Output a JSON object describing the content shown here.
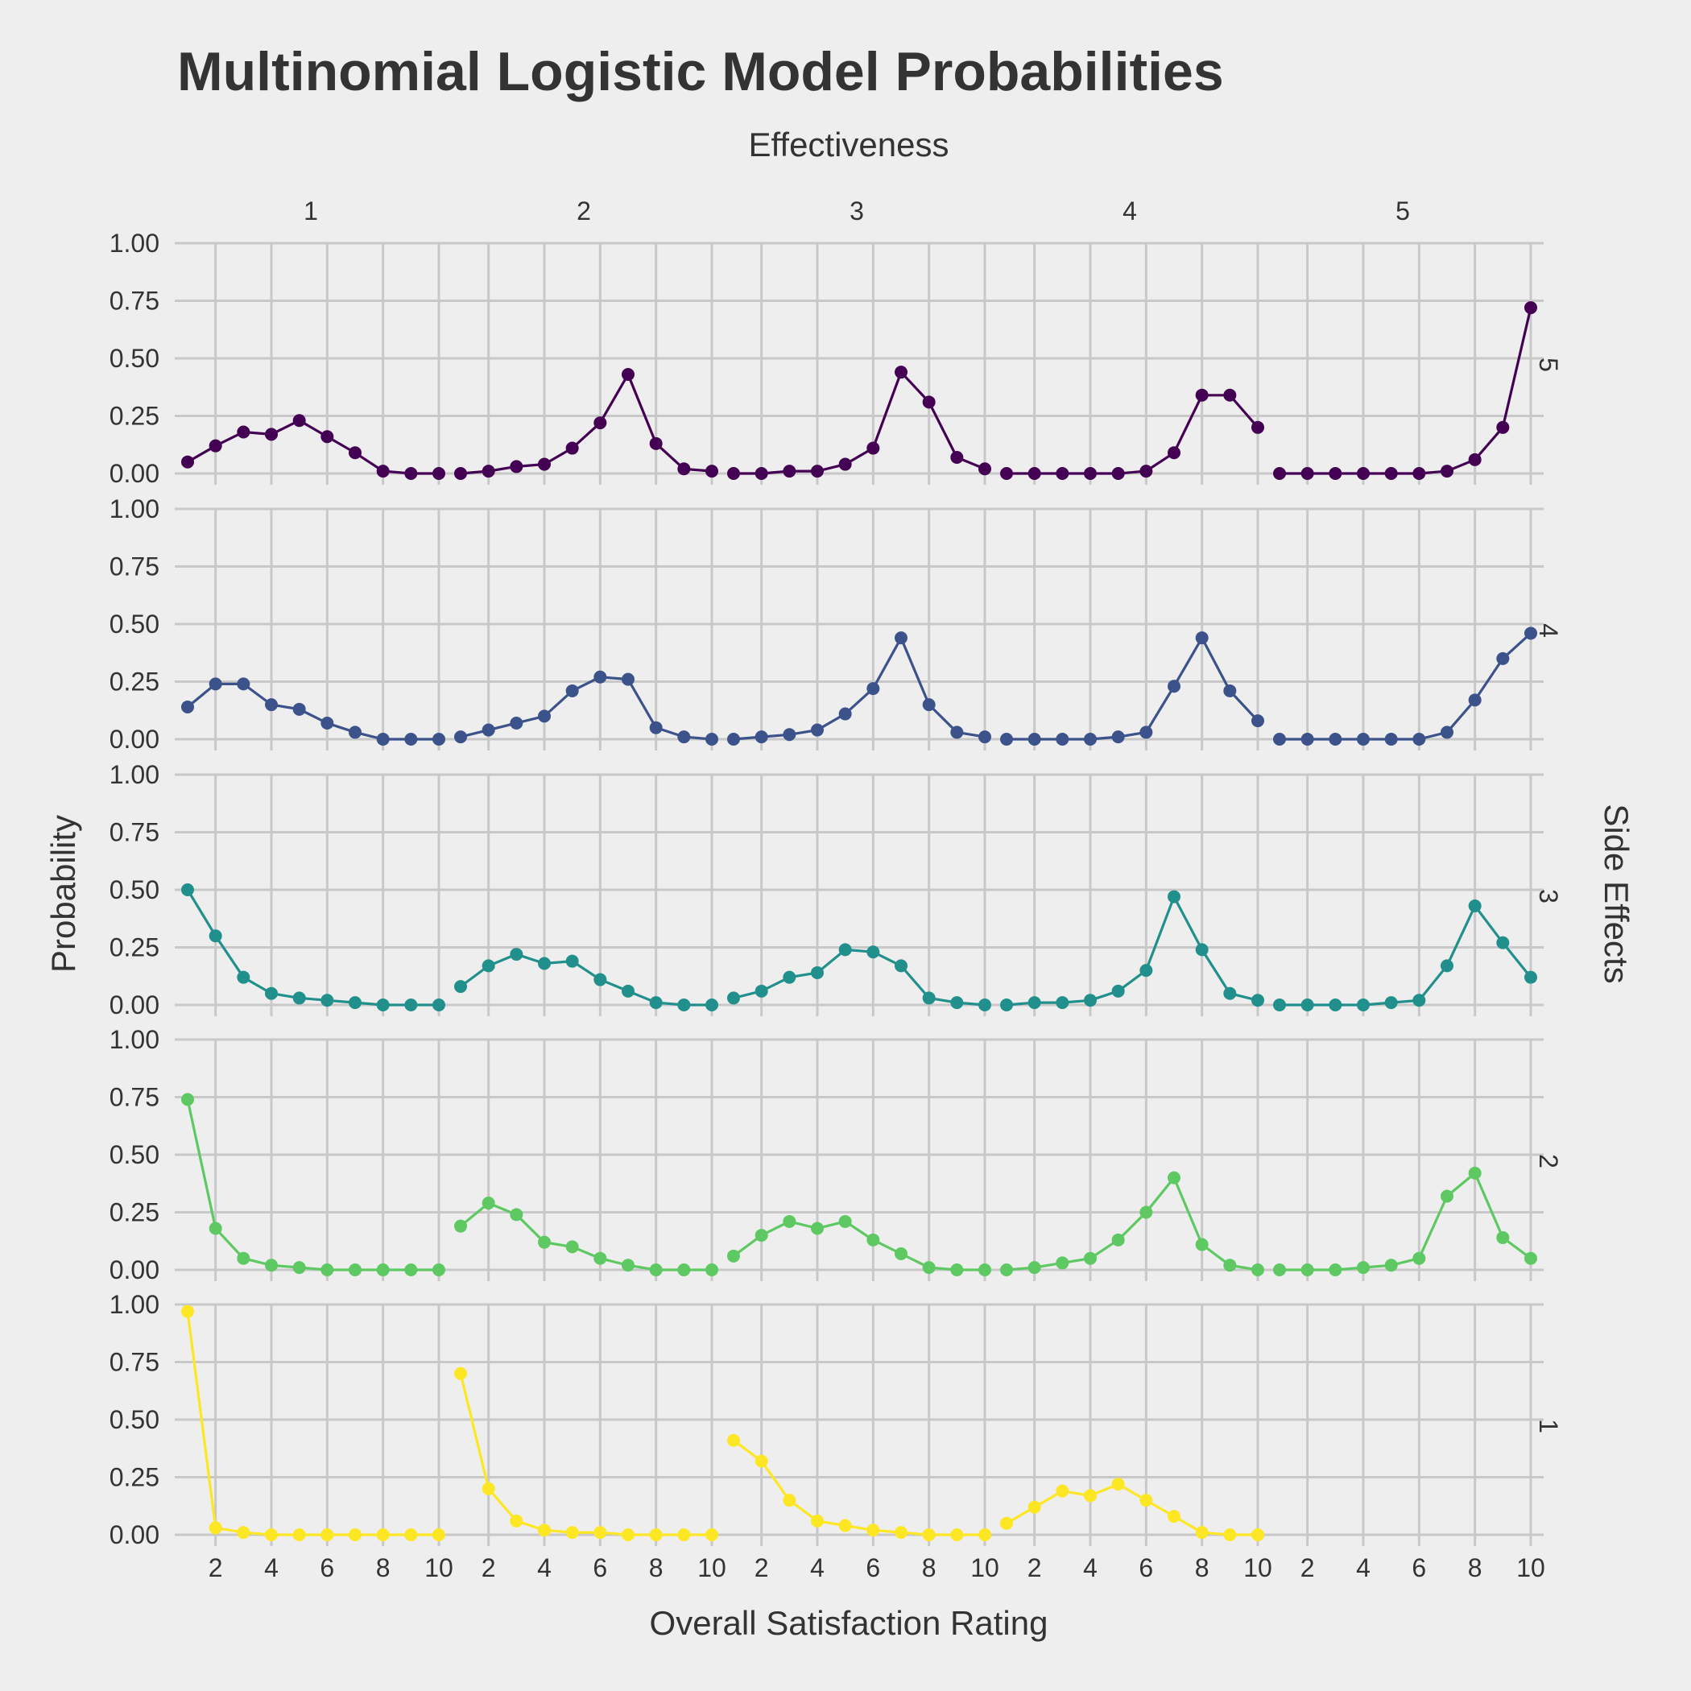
{
  "chart_data": {
    "type": "line",
    "title": "Multinomial Logistic Model Probabilities",
    "xlabel": "Overall Satisfaction Rating",
    "ylabel": "Probability",
    "facet_col_title": "Effectiveness",
    "facet_row_title": "Side Effects",
    "col_levels": [
      "1",
      "2",
      "3",
      "4",
      "5"
    ],
    "row_levels": [
      "5",
      "4",
      "3",
      "2",
      "1"
    ],
    "x": [
      1,
      2,
      3,
      4,
      5,
      6,
      7,
      8,
      9,
      10
    ],
    "x_ticks": [
      "2",
      "4",
      "6",
      "8",
      "10"
    ],
    "y_ticks": [
      "0.00",
      "0.25",
      "0.50",
      "0.75",
      "1.00"
    ],
    "ylim": [
      0,
      1
    ],
    "xlim": [
      1,
      10
    ],
    "grid": true,
    "legend": "none",
    "row_colors": {
      "5": "#440154",
      "4": "#3b528b",
      "3": "#21908c",
      "2": "#5ec962",
      "1": "#fde725"
    },
    "panels": [
      {
        "side_effects": "5",
        "effectiveness": "1",
        "values": [
          0.05,
          0.12,
          0.18,
          0.17,
          0.23,
          0.16,
          0.09,
          0.01,
          0.0,
          0.0
        ]
      },
      {
        "side_effects": "5",
        "effectiveness": "2",
        "values": [
          0.0,
          0.01,
          0.03,
          0.04,
          0.11,
          0.22,
          0.43,
          0.13,
          0.02,
          0.01
        ]
      },
      {
        "side_effects": "5",
        "effectiveness": "3",
        "values": [
          0.0,
          0.0,
          0.01,
          0.01,
          0.04,
          0.11,
          0.44,
          0.31,
          0.07,
          0.02
        ]
      },
      {
        "side_effects": "5",
        "effectiveness": "4",
        "values": [
          0.0,
          0.0,
          0.0,
          0.0,
          0.0,
          0.01,
          0.09,
          0.34,
          0.34,
          0.2
        ]
      },
      {
        "side_effects": "5",
        "effectiveness": "5",
        "values": [
          0.0,
          0.0,
          0.0,
          0.0,
          0.0,
          0.0,
          0.01,
          0.06,
          0.2,
          0.72
        ]
      },
      {
        "side_effects": "4",
        "effectiveness": "1",
        "values": [
          0.14,
          0.24,
          0.24,
          0.15,
          0.13,
          0.07,
          0.03,
          0.0,
          0.0,
          0.0
        ]
      },
      {
        "side_effects": "4",
        "effectiveness": "2",
        "values": [
          0.01,
          0.04,
          0.07,
          0.1,
          0.21,
          0.27,
          0.26,
          0.05,
          0.01,
          0.0
        ]
      },
      {
        "side_effects": "4",
        "effectiveness": "3",
        "values": [
          0.0,
          0.01,
          0.02,
          0.04,
          0.11,
          0.22,
          0.44,
          0.15,
          0.03,
          0.01
        ]
      },
      {
        "side_effects": "4",
        "effectiveness": "4",
        "values": [
          0.0,
          0.0,
          0.0,
          0.0,
          0.01,
          0.03,
          0.23,
          0.44,
          0.21,
          0.08
        ]
      },
      {
        "side_effects": "4",
        "effectiveness": "5",
        "values": [
          0.0,
          0.0,
          0.0,
          0.0,
          0.0,
          0.0,
          0.03,
          0.17,
          0.35,
          0.46
        ]
      },
      {
        "side_effects": "3",
        "effectiveness": "1",
        "values": [
          0.5,
          0.3,
          0.12,
          0.05,
          0.03,
          0.02,
          0.01,
          0.0,
          0.0,
          0.0
        ]
      },
      {
        "side_effects": "3",
        "effectiveness": "2",
        "values": [
          0.08,
          0.17,
          0.22,
          0.18,
          0.19,
          0.11,
          0.06,
          0.01,
          0.0,
          0.0
        ]
      },
      {
        "side_effects": "3",
        "effectiveness": "3",
        "values": [
          0.03,
          0.06,
          0.12,
          0.14,
          0.24,
          0.23,
          0.17,
          0.03,
          0.01,
          0.0
        ]
      },
      {
        "side_effects": "3",
        "effectiveness": "4",
        "values": [
          0.0,
          0.01,
          0.01,
          0.02,
          0.06,
          0.15,
          0.47,
          0.24,
          0.05,
          0.02
        ]
      },
      {
        "side_effects": "3",
        "effectiveness": "5",
        "values": [
          0.0,
          0.0,
          0.0,
          0.0,
          0.01,
          0.02,
          0.17,
          0.43,
          0.27,
          0.12
        ]
      },
      {
        "side_effects": "2",
        "effectiveness": "1",
        "values": [
          0.74,
          0.18,
          0.05,
          0.02,
          0.01,
          0.0,
          0.0,
          0.0,
          0.0,
          0.0
        ]
      },
      {
        "side_effects": "2",
        "effectiveness": "2",
        "values": [
          0.19,
          0.29,
          0.24,
          0.12,
          0.1,
          0.05,
          0.02,
          0.0,
          0.0,
          0.0
        ]
      },
      {
        "side_effects": "2",
        "effectiveness": "3",
        "values": [
          0.06,
          0.15,
          0.21,
          0.18,
          0.21,
          0.13,
          0.07,
          0.01,
          0.0,
          0.0
        ]
      },
      {
        "side_effects": "2",
        "effectiveness": "4",
        "values": [
          0.0,
          0.01,
          0.03,
          0.05,
          0.13,
          0.25,
          0.4,
          0.11,
          0.02,
          0.0
        ]
      },
      {
        "side_effects": "2",
        "effectiveness": "5",
        "values": [
          0.0,
          0.0,
          0.0,
          0.01,
          0.02,
          0.05,
          0.32,
          0.42,
          0.14,
          0.05
        ]
      },
      {
        "side_effects": "1",
        "effectiveness": "1",
        "values": [
          0.97,
          0.03,
          0.01,
          0.0,
          0.0,
          0.0,
          0.0,
          0.0,
          0.0,
          0.0
        ]
      },
      {
        "side_effects": "1",
        "effectiveness": "2",
        "values": [
          0.7,
          0.2,
          0.06,
          0.02,
          0.01,
          0.01,
          0.0,
          0.0,
          0.0,
          0.0
        ]
      },
      {
        "side_effects": "1",
        "effectiveness": "3",
        "values": [
          0.41,
          0.32,
          0.15,
          0.06,
          0.04,
          0.02,
          0.01,
          0.0,
          0.0,
          0.0
        ]
      },
      {
        "side_effects": "1",
        "effectiveness": "4",
        "values": [
          0.05,
          0.12,
          0.19,
          0.17,
          0.22,
          0.15,
          0.08,
          0.01,
          0.0,
          0.0
        ]
      },
      {
        "side_effects": "1",
        "effectiveness": "5",
        "values": []
      }
    ]
  }
}
